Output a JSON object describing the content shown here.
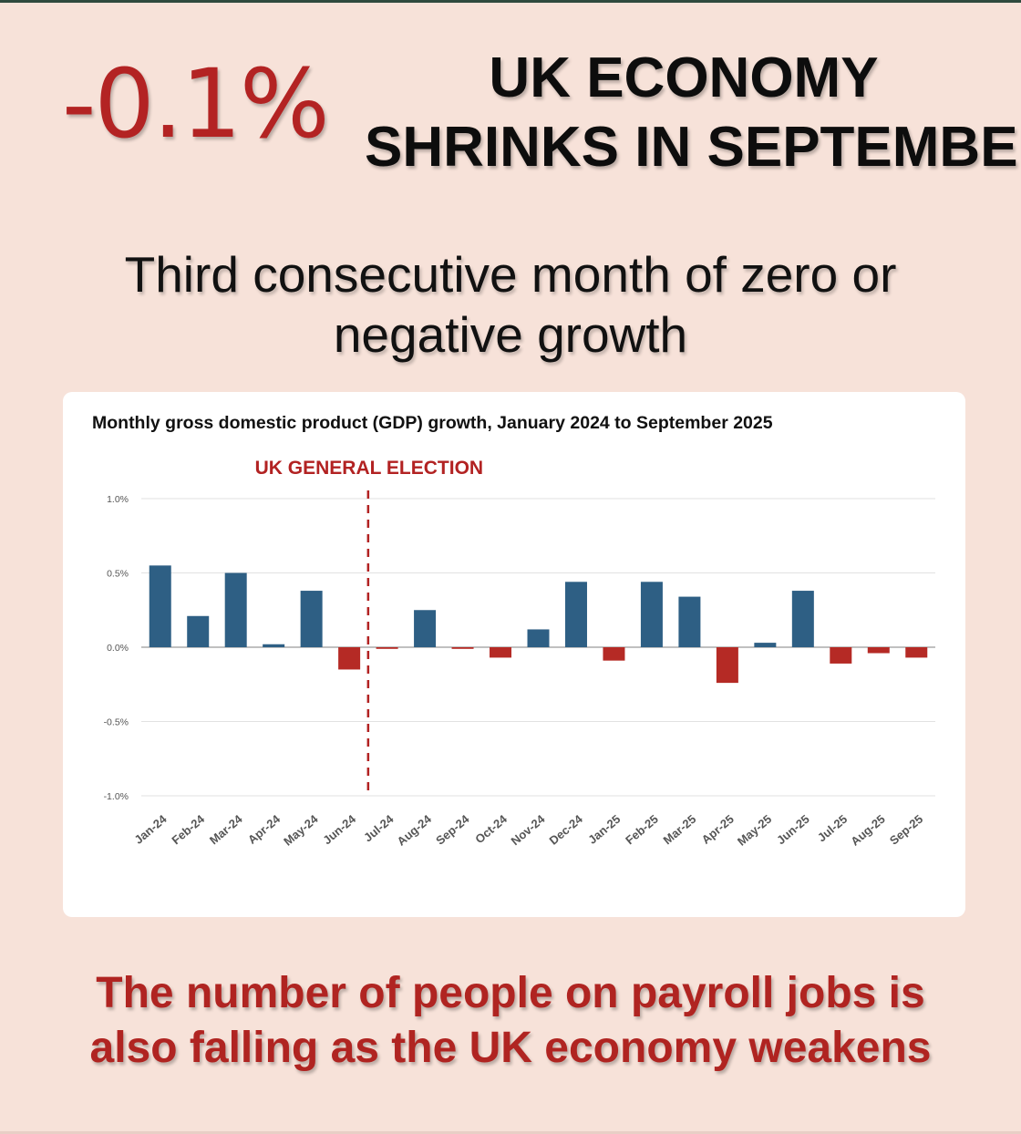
{
  "headline": {
    "figure": "-0.1%",
    "line1": "UK ECONOMY",
    "line2": "SHRINKS IN SEPTEMBER"
  },
  "subtitle": {
    "line1": "Third consecutive month of zero or",
    "line2": "negative growth"
  },
  "footer": {
    "line1": "The number of people on payroll jobs is",
    "line2": "also falling as the UK economy weakens"
  },
  "colors": {
    "background": "#f7e2d9",
    "positive_bar": "#2e5f84",
    "negative_bar": "#b52a25",
    "accent_red": "#b02421",
    "election_line": "#b22222"
  },
  "chart_data": {
    "type": "bar",
    "title": "Monthly gross domestic product (GDP) growth, January 2024 to September 2025",
    "xlabel": "",
    "ylabel": "",
    "ylim": [
      -1.0,
      1.0
    ],
    "yticks": [
      1.0,
      0.5,
      0.0,
      -0.5,
      -1.0
    ],
    "ytick_labels": [
      "1.0%",
      "0.5%",
      "0.0%",
      "-0.5%",
      "-1.0%"
    ],
    "grid": true,
    "legend": "none",
    "categories": [
      "Jan-24",
      "Feb-24",
      "Mar-24",
      "Apr-24",
      "May-24",
      "Jun-24",
      "Jul-24",
      "Aug-24",
      "Sep-24",
      "Oct-24",
      "Nov-24",
      "Dec-24",
      "Jan-25",
      "Feb-25",
      "Mar-25",
      "Apr-25",
      "May-25",
      "Jun-25",
      "Jul-25",
      "Aug-25",
      "Sep-25"
    ],
    "values": [
      0.55,
      0.21,
      0.5,
      0.02,
      0.38,
      -0.15,
      -0.01,
      0.25,
      -0.01,
      -0.07,
      0.12,
      0.44,
      -0.09,
      0.44,
      0.34,
      -0.24,
      0.03,
      0.38,
      -0.11,
      -0.04,
      -0.07
    ],
    "annotations": [
      {
        "text": "UK GENERAL ELECTION",
        "between": [
          "Jun-24",
          "Jul-24"
        ],
        "style": "dashed-vertical-line"
      }
    ]
  }
}
